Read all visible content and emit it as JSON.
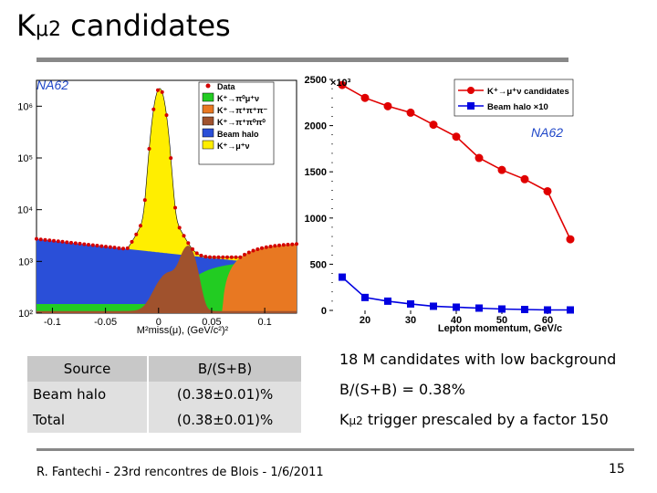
{
  "title": {
    "main": "K",
    "sub": "μ2",
    "rest": " candidates"
  },
  "left_chart": {
    "chart_data": {
      "type": "area",
      "xlabel": "M²miss(μ), (GeV/c²)²",
      "x_ticks": [
        "-0.1",
        "-0.05",
        "0",
        "0.05",
        "0.1"
      ],
      "y_ticks": [
        "10²",
        "10³",
        "10⁴",
        "10⁵",
        "10⁶"
      ],
      "ylim": [
        100,
        1000000
      ],
      "log_y": true,
      "experiment_label": "NA62",
      "legend": [
        {
          "label": "Data",
          "color": "#d40000"
        },
        {
          "label": "K⁺→π⁰μ⁺ν",
          "color": "#22cc22"
        },
        {
          "label": "K⁺→π⁺π⁺π⁻",
          "color": "#e87822"
        },
        {
          "label": "K⁺→π⁺π⁰π⁰",
          "color": "#a0522d"
        },
        {
          "label": "Beam halo",
          "color": "#2a4fd8"
        },
        {
          "label": "K⁺→μ⁺ν",
          "color": "#ffee00"
        }
      ]
    }
  },
  "right_chart": {
    "chart_data": {
      "type": "line",
      "x_label": "Lepton momentum, GeV/c",
      "y_multiplier": "×10³",
      "x_ticks": [
        "20",
        "30",
        "40",
        "50",
        "60"
      ],
      "y_ticks": [
        "0",
        "500",
        "1000",
        "1500",
        "2000",
        "2500"
      ],
      "ylim": [
        0,
        2500
      ],
      "xlim": [
        13,
        66
      ],
      "experiment_label": "NA62",
      "series": [
        {
          "name": "K⁺→μ⁺ν candidates",
          "color": "#e00000",
          "marker": "circle",
          "x": [
            15,
            20,
            25,
            30,
            35,
            40,
            45,
            50,
            55,
            60,
            65
          ],
          "y": [
            2440,
            2300,
            2210,
            2140,
            2010,
            1880,
            1650,
            1520,
            1420,
            1290,
            770
          ]
        },
        {
          "name": "Beam halo ×10",
          "color": "#0000e0",
          "marker": "square",
          "x": [
            15,
            20,
            25,
            30,
            35,
            40,
            45,
            50,
            55,
            60,
            65
          ],
          "y": [
            360,
            140,
            100,
            70,
            45,
            35,
            25,
            15,
            10,
            5,
            5
          ]
        }
      ]
    }
  },
  "table": {
    "headers": [
      "Source",
      "B/(S+B)"
    ],
    "rows": [
      {
        "source": "Beam halo",
        "value": "(0.38±0.01)%"
      },
      {
        "source": "Total",
        "value": "(0.38±0.01)%"
      }
    ]
  },
  "bullets": {
    "b1": "18 M candidates with low background",
    "b2": "B/(S+B) = 0.38%",
    "b3_k": "K",
    "b3_sub": "μ2",
    "b3_rest": " trigger prescaled by a factor 150"
  },
  "footer": "R. Fantechi - 23rd rencontres de Blois - 1/6/2011",
  "page_number": "15"
}
